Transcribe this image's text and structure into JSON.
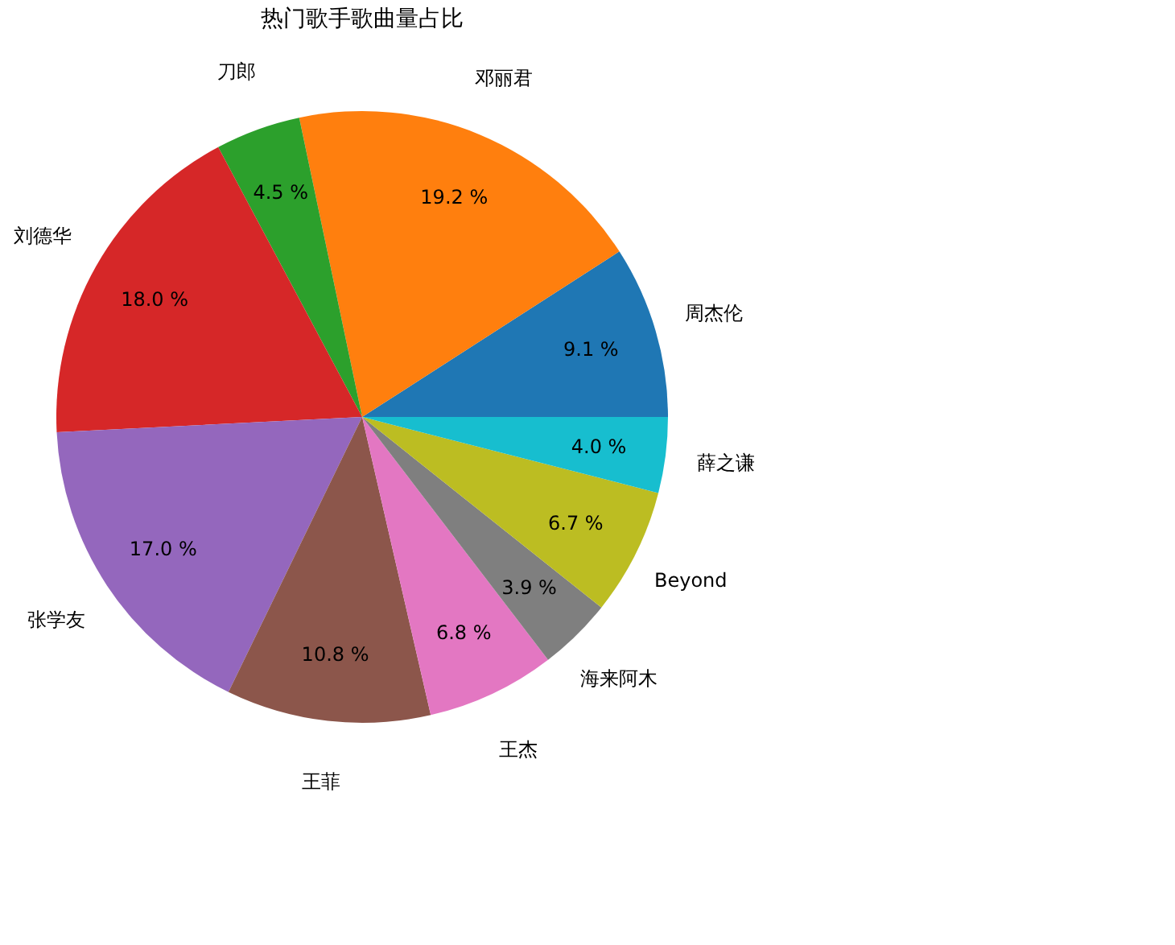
{
  "chart_data": {
    "type": "pie",
    "title": "热门歌手歌曲量占比",
    "categories": [
      "周杰伦",
      "邓丽君",
      "刀郎",
      "刘德华",
      "张学友",
      "王菲",
      "王杰",
      "海来阿木",
      "Beyond",
      "薛之谦"
    ],
    "values": [
      9.1,
      19.2,
      4.5,
      18.0,
      17.0,
      10.8,
      6.8,
      3.9,
      6.7,
      4.0
    ],
    "value_labels": [
      "9.1 %",
      "19.2 %",
      "4.5 %",
      "18.0 %",
      "17.0 %",
      "10.8 %",
      "6.8 %",
      "3.9 %",
      "6.7 %",
      "4.0 %"
    ],
    "colors": [
      "#1f77b4",
      "#ff7f0e",
      "#2ca02c",
      "#d62728",
      "#9467bd",
      "#8c564b",
      "#e377c2",
      "#7f7f7f",
      "#bcbd22",
      "#17becf"
    ],
    "legend": false
  }
}
